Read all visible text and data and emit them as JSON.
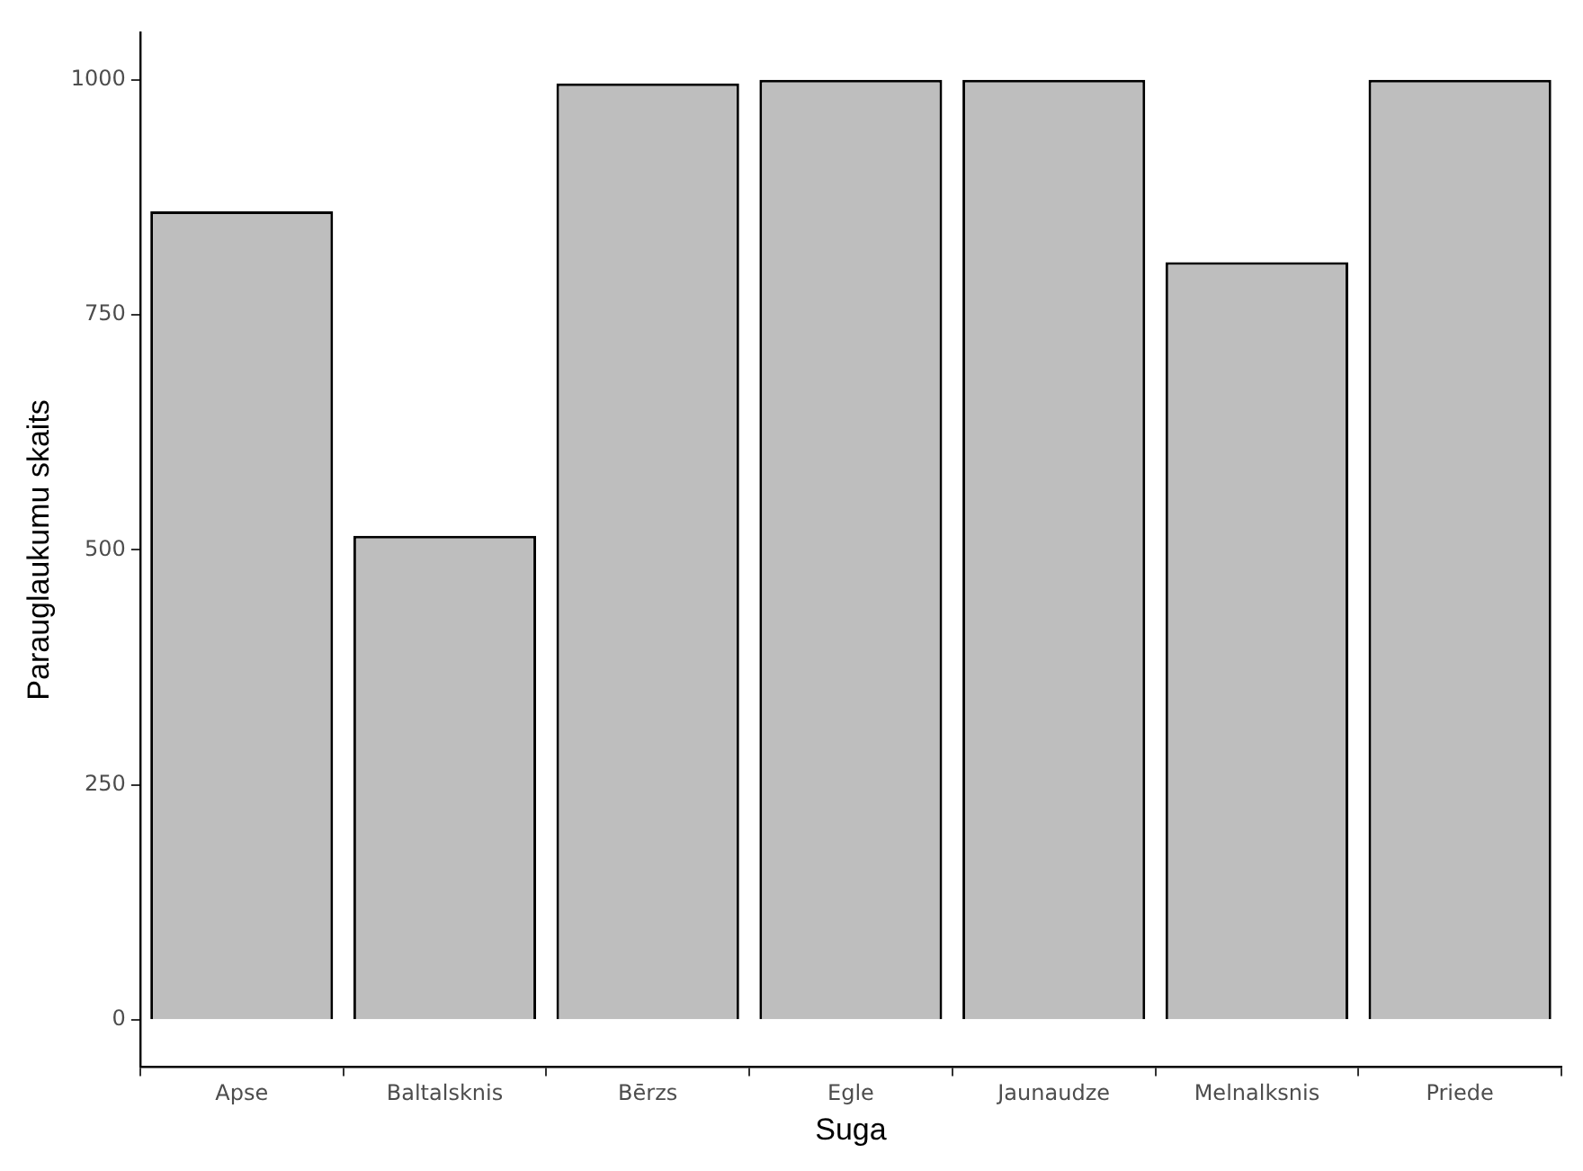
{
  "chart_data": {
    "type": "bar",
    "xlabel": "Suga",
    "ylabel": "Parauglaukumu skaits",
    "categories": [
      "Apse",
      "Baltalsknis",
      "Bērzs",
      "Egle",
      "Jaunaudze",
      "Melnalksnis",
      "Priede"
    ],
    "values": [
      860,
      515,
      996,
      1000,
      1000,
      806,
      1000
    ],
    "color": "#bebebe",
    "ylim": [
      -50,
      1050
    ],
    "yticks": [
      0,
      250,
      500,
      750,
      1000
    ],
    "grid": false
  }
}
